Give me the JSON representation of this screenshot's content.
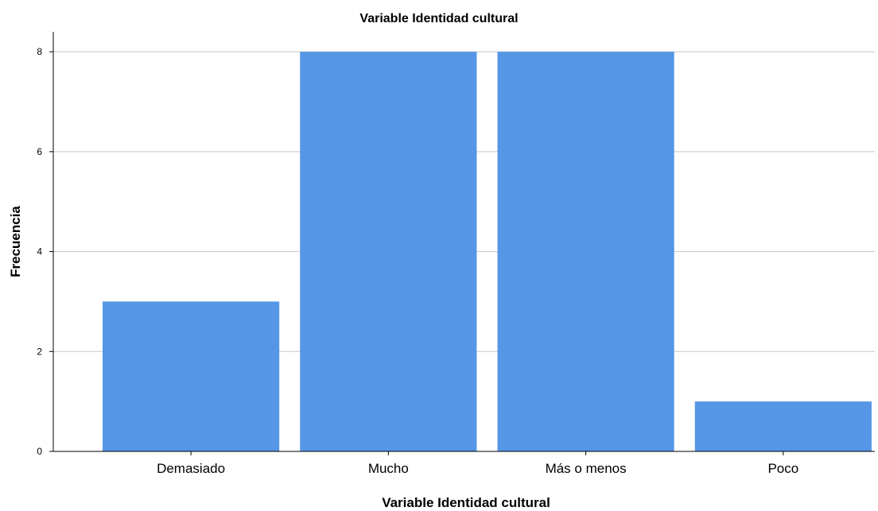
{
  "chart_data": {
    "type": "bar",
    "title": "Variable Identidad cultural",
    "xlabel": "Variable Identidad cultural",
    "ylabel": "Frecuencia",
    "categories": [
      "Demasiado",
      "Mucho",
      "Más o menos",
      "Poco"
    ],
    "values": [
      3,
      8,
      8,
      1
    ],
    "ylim": [
      0,
      8.4
    ],
    "yticks": [
      "0",
      "2",
      "4",
      "6",
      "8"
    ],
    "grid": true,
    "legend": "none",
    "colors": {
      "bar": "#5596e6",
      "grid": "#c8c8c8",
      "axis": "#000000"
    }
  }
}
